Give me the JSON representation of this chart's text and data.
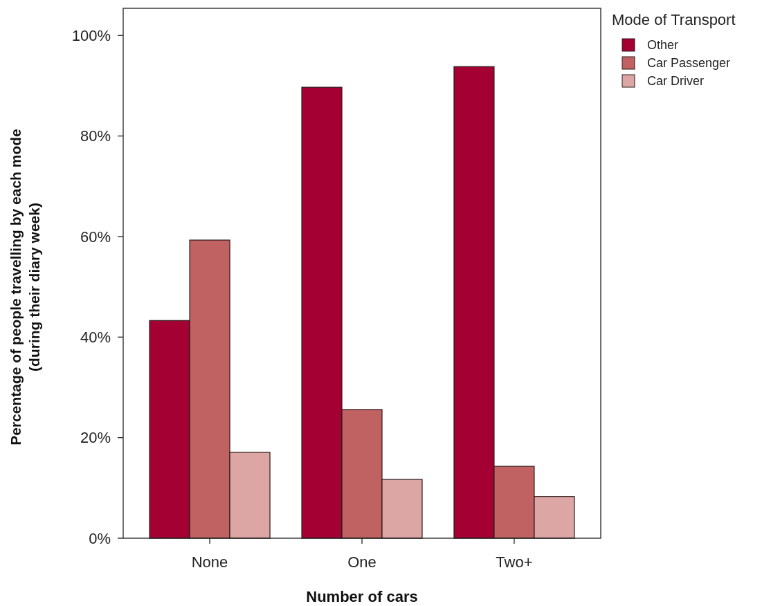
{
  "chart_data": {
    "type": "bar",
    "xlabel": "Number of cars",
    "ylabel": "Percentage of people travelling by each mode\n(during their diary week)",
    "legend_title": "Mode of Transport",
    "categories": [
      "None",
      "One",
      "Two+"
    ],
    "series": [
      {
        "name": "Other",
        "color": "#a50034",
        "values": [
          43.3,
          89.7,
          93.8
        ]
      },
      {
        "name": "Car Passenger",
        "color": "#c06262",
        "values": [
          59.3,
          25.6,
          14.3
        ]
      },
      {
        "name": "Car Driver",
        "color": "#dca6a4",
        "values": [
          17.1,
          11.7,
          8.3
        ]
      }
    ],
    "ylim": [
      0,
      105.4
    ],
    "yticks": [
      {
        "value": 0,
        "label": "0%"
      },
      {
        "value": 20,
        "label": "20%"
      },
      {
        "value": 40,
        "label": "40%"
      },
      {
        "value": 60,
        "label": "60%"
      },
      {
        "value": 80,
        "label": "80%"
      },
      {
        "value": 100,
        "label": "100%"
      }
    ],
    "grid": false,
    "legend": "top right"
  }
}
